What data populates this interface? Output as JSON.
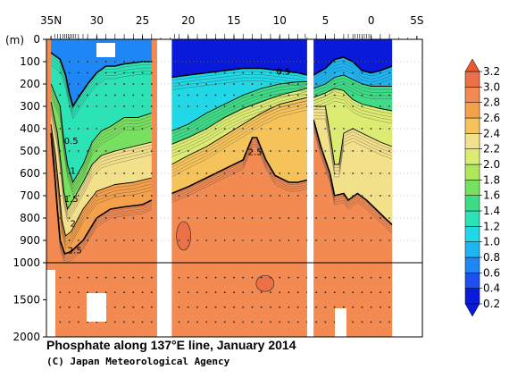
{
  "chart_data": {
    "type": "heatmap",
    "title": "Phosphate along 137°E line, January 2014",
    "credit": "(C) Japan Meteorological Agency",
    "depth_unit": "(m)",
    "x_ticks": [
      {
        "lat": 35,
        "label": "35N"
      },
      {
        "lat": 30,
        "label": "30"
      },
      {
        "lat": 25,
        "label": "25"
      },
      {
        "lat": 20,
        "label": "20"
      },
      {
        "lat": 15,
        "label": "15"
      },
      {
        "lat": 10,
        "label": "10"
      },
      {
        "lat": 5,
        "label": "5"
      },
      {
        "lat": 0,
        "label": "0"
      },
      {
        "lat": -5,
        "label": "5S"
      }
    ],
    "upper_y_ticks": [
      0,
      100,
      200,
      300,
      400,
      500,
      600,
      700,
      800,
      900,
      1000
    ],
    "lower_y_ticks": [
      1500,
      2000
    ],
    "colorbar": {
      "levels": [
        0.2,
        0.4,
        0.6,
        0.8,
        1.0,
        1.2,
        1.4,
        1.6,
        1.8,
        2.0,
        2.2,
        2.4,
        2.6,
        2.8,
        3.0,
        3.2
      ],
      "labels": [
        "0.2",
        "0.4",
        "0.6",
        "0.8",
        "1.0",
        "1.2",
        "1.4",
        "1.6",
        "1.8",
        "2.0",
        "2.2",
        "2.4",
        "2.6",
        "2.8",
        "3.0",
        "3.2"
      ],
      "colors": [
        "#0a1adb",
        "#1c50f0",
        "#1f86f5",
        "#1fb5f2",
        "#20d8e6",
        "#2ce3b6",
        "#3fdc88",
        "#78e060",
        "#aee85a",
        "#dcec72",
        "#f3e08a",
        "#f6c35a",
        "#f5a04a",
        "#f28a52",
        "#ec7048",
        "#e85a30"
      ]
    },
    "contour_labels": [
      {
        "lat": 32.8,
        "depth": 455,
        "text": "0.5"
      },
      {
        "lat": 32.6,
        "depth": 590,
        "text": "1"
      },
      {
        "lat": 32.8,
        "depth": 715,
        "text": "1.5"
      },
      {
        "lat": 32.6,
        "depth": 825,
        "text": "2"
      },
      {
        "lat": 32.4,
        "depth": 945,
        "text": "2.5"
      },
      {
        "lat": 12.7,
        "depth": 505,
        "text": "2.5"
      },
      {
        "lat": 9.6,
        "depth": 145,
        "text": "0.5"
      }
    ],
    "sections": [
      {
        "lat_start": 35.5,
        "lat_end": 23.4,
        "surface_low_lat_start": 34.8,
        "surface_low_depth": 140
      },
      {
        "lat_start": 21.8,
        "lat_end": 7.0
      },
      {
        "lat_start": 6.3,
        "lat_end": -2.3
      }
    ],
    "contour_lines": [
      {
        "level": 0.5,
        "points": [
          [
            35.0,
            60
          ],
          [
            34.0,
            90
          ],
          [
            33.4,
            160
          ],
          [
            33.0,
            240
          ],
          [
            32.6,
            300
          ],
          [
            32.0,
            260
          ],
          [
            31.0,
            200
          ],
          [
            30.0,
            150
          ],
          [
            29.0,
            120
          ],
          [
            28.0,
            120
          ],
          [
            27.0,
            110
          ],
          [
            25.0,
            100
          ],
          [
            24.0,
            100
          ]
        ]
      },
      {
        "level": 0.5,
        "points": [
          [
            21.8,
            170
          ],
          [
            20.0,
            160
          ],
          [
            18.0,
            150
          ],
          [
            16.0,
            140
          ],
          [
            14.0,
            130
          ],
          [
            12.0,
            130
          ],
          [
            10.0,
            140
          ],
          [
            8.0,
            150
          ],
          [
            7.0,
            160
          ]
        ]
      },
      {
        "level": 0.5,
        "points": [
          [
            6.3,
            160
          ],
          [
            5.0,
            130
          ],
          [
            4.0,
            90
          ],
          [
            3.0,
            80
          ],
          [
            2.0,
            100
          ],
          [
            1.0,
            140
          ],
          [
            0.0,
            150
          ],
          [
            -1.0,
            140
          ],
          [
            -2.3,
            120
          ]
        ]
      },
      {
        "level": 1.0,
        "points": [
          [
            35.0,
            200
          ],
          [
            34.0,
            300
          ],
          [
            33.6,
            450
          ],
          [
            33.2,
            560
          ],
          [
            32.6,
            640
          ],
          [
            31.5,
            560
          ],
          [
            30.5,
            460
          ],
          [
            29.5,
            410
          ],
          [
            28.5,
            390
          ],
          [
            27.0,
            350
          ],
          [
            25.5,
            350
          ],
          [
            24.0,
            330
          ]
        ]
      },
      {
        "level": 1.5,
        "points": [
          [
            35.0,
            280
          ],
          [
            34.3,
            420
          ],
          [
            33.9,
            560
          ],
          [
            33.6,
            680
          ],
          [
            33.2,
            760
          ],
          [
            32.6,
            720
          ],
          [
            31.5,
            640
          ],
          [
            30.5,
            560
          ],
          [
            29.5,
            520
          ],
          [
            28.0,
            500
          ],
          [
            26.0,
            480
          ],
          [
            24.0,
            460
          ]
        ]
      },
      {
        "level": 2.0,
        "points": [
          [
            35.0,
            380
          ],
          [
            34.5,
            520
          ],
          [
            34.1,
            680
          ],
          [
            33.8,
            810
          ],
          [
            33.4,
            880
          ],
          [
            32.8,
            860
          ],
          [
            31.5,
            760
          ],
          [
            30.0,
            680
          ],
          [
            28.0,
            650
          ],
          [
            26.0,
            640
          ],
          [
            24.0,
            620
          ]
        ]
      },
      {
        "level": 2.5,
        "points": [
          [
            35.0,
            420
          ],
          [
            34.6,
            600
          ],
          [
            34.3,
            760
          ],
          [
            34.0,
            900
          ],
          [
            33.5,
            960
          ],
          [
            32.8,
            950
          ],
          [
            31.5,
            900
          ],
          [
            30.0,
            800
          ],
          [
            28.5,
            760
          ],
          [
            27.0,
            750
          ],
          [
            25.0,
            740
          ],
          [
            24.0,
            720
          ]
        ]
      },
      {
        "level": 1.0,
        "points": [
          [
            21.8,
            410
          ],
          [
            20.0,
            380
          ],
          [
            18.0,
            330
          ],
          [
            16.0,
            290
          ],
          [
            14.0,
            250
          ],
          [
            12.0,
            220
          ],
          [
            10.0,
            200
          ],
          [
            8.0,
            190
          ],
          [
            7.0,
            190
          ]
        ]
      },
      {
        "level": 1.5,
        "points": [
          [
            21.8,
            470
          ],
          [
            20.0,
            440
          ],
          [
            18.0,
            400
          ],
          [
            16.0,
            350
          ],
          [
            14.0,
            310
          ],
          [
            12.0,
            280
          ],
          [
            10.0,
            250
          ],
          [
            8.0,
            230
          ],
          [
            7.0,
            220
          ]
        ]
      },
      {
        "level": 2.0,
        "points": [
          [
            21.8,
            560
          ],
          [
            20.0,
            520
          ],
          [
            18.0,
            480
          ],
          [
            16.0,
            430
          ],
          [
            14.0,
            380
          ],
          [
            12.0,
            330
          ],
          [
            10.0,
            290
          ],
          [
            8.0,
            270
          ],
          [
            7.0,
            260
          ]
        ]
      },
      {
        "level": 2.5,
        "points": [
          [
            21.8,
            690
          ],
          [
            20.0,
            660
          ],
          [
            18.0,
            620
          ],
          [
            16.0,
            580
          ],
          [
            14.0,
            540
          ],
          [
            13.0,
            440
          ],
          [
            12.5,
            440
          ],
          [
            11.5,
            540
          ],
          [
            10.5,
            610
          ],
          [
            9.0,
            640
          ],
          [
            8.0,
            640
          ],
          [
            7.0,
            630
          ]
        ]
      },
      {
        "level": 1.0,
        "points": [
          [
            6.3,
            220
          ],
          [
            5.0,
            200
          ],
          [
            4.0,
            170
          ],
          [
            3.0,
            160
          ],
          [
            2.0,
            180
          ],
          [
            1.0,
            200
          ],
          [
            0.0,
            210
          ],
          [
            -1.0,
            210
          ],
          [
            -2.3,
            210
          ]
        ]
      },
      {
        "level": 1.5,
        "points": [
          [
            6.3,
            260
          ],
          [
            5.0,
            240
          ],
          [
            4.0,
            220
          ],
          [
            3.0,
            230
          ],
          [
            2.0,
            270
          ],
          [
            1.0,
            290
          ],
          [
            0.0,
            300
          ],
          [
            -1.0,
            310
          ],
          [
            -2.3,
            320
          ]
        ]
      },
      {
        "level": 2.0,
        "points": [
          [
            6.3,
            300
          ],
          [
            5.0,
            300
          ],
          [
            4.5,
            420
          ],
          [
            4.0,
            560
          ],
          [
            3.5,
            560
          ],
          [
            3.0,
            420
          ],
          [
            2.0,
            400
          ],
          [
            1.0,
            420
          ],
          [
            0.0,
            440
          ],
          [
            -1.0,
            460
          ],
          [
            -2.3,
            480
          ]
        ]
      },
      {
        "level": 2.5,
        "points": [
          [
            6.3,
            360
          ],
          [
            5.5,
            480
          ],
          [
            4.5,
            600
          ],
          [
            4.0,
            700
          ],
          [
            3.0,
            690
          ],
          [
            2.5,
            720
          ],
          [
            1.5,
            690
          ],
          [
            0.5,
            720
          ],
          [
            -0.5,
            760
          ],
          [
            -1.5,
            800
          ],
          [
            -2.3,
            830
          ]
        ]
      }
    ]
  }
}
